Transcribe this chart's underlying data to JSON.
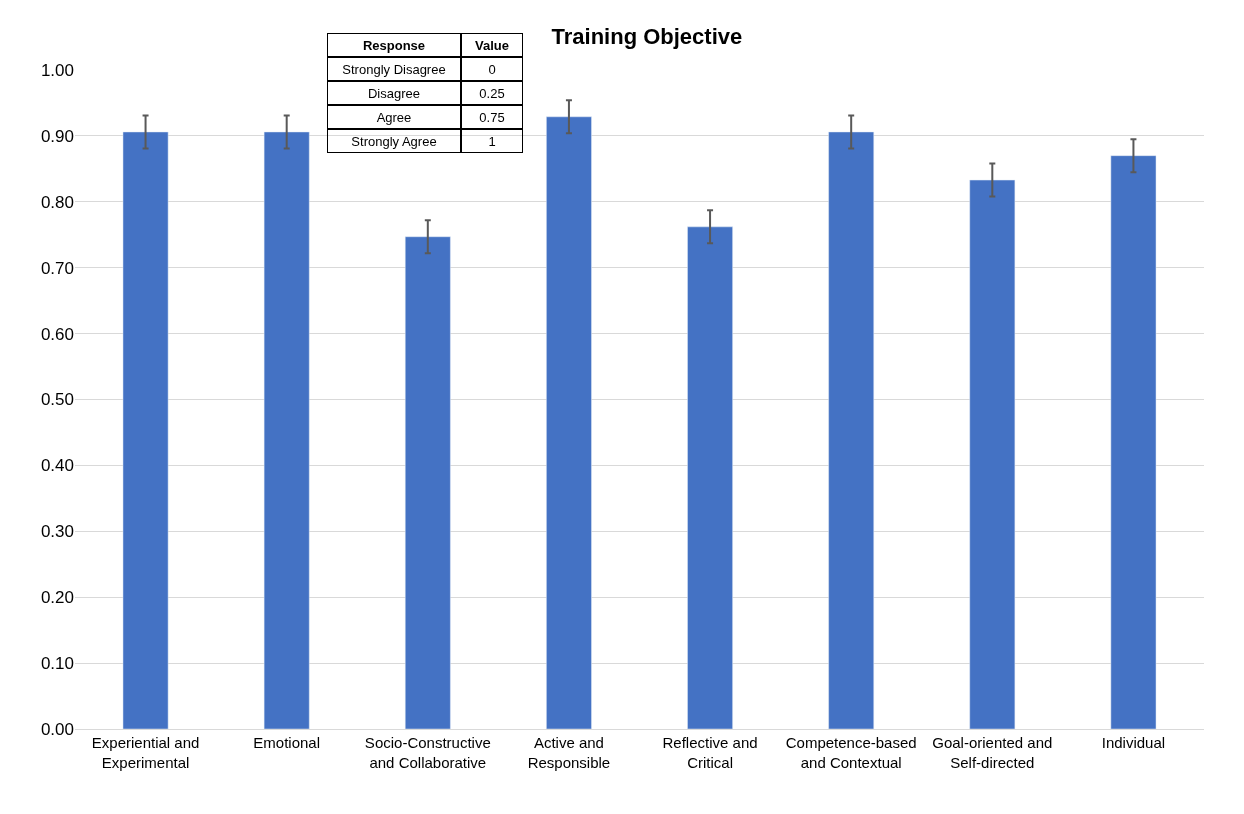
{
  "chart_data": {
    "type": "bar",
    "title": "Training Objective",
    "categories": [
      "Experiential and Experimental",
      "Emotional",
      "Socio-Constructive and Collaborative",
      "Active and Responsible",
      "Reflective and Critical",
      "Competence-based and Contextual",
      "Goal-oriented and Self-directed",
      "Individual"
    ],
    "values": [
      0.906,
      0.906,
      0.747,
      0.929,
      0.762,
      0.906,
      0.833,
      0.87
    ],
    "errors": [
      0.025,
      0.025,
      0.025,
      0.025,
      0.025,
      0.025,
      0.025,
      0.025
    ],
    "color": "#4472c4",
    "ylim": [
      0,
      1.0
    ],
    "yticks": [
      {
        "value": 0,
        "label": "0.00"
      },
      {
        "value": 0.1,
        "label": "0.10"
      },
      {
        "value": 0.2,
        "label": "0.20"
      },
      {
        "value": 0.3,
        "label": "0.30"
      },
      {
        "value": 0.4,
        "label": "0.40"
      },
      {
        "value": 0.5,
        "label": "0.50"
      },
      {
        "value": 0.6,
        "label": "0.60"
      },
      {
        "value": 0.7,
        "label": "0.70"
      },
      {
        "value": 0.8,
        "label": "0.80"
      },
      {
        "value": 0.9,
        "label": "0.90"
      },
      {
        "value": 1.0,
        "label": "1.00"
      }
    ],
    "grid": "y",
    "annotations": [
      "Response",
      "Value",
      "Strongly Disagree",
      "0",
      "Disagree",
      "0.25",
      "Agree",
      "0.75",
      "Strongly Agree",
      "1"
    ]
  }
}
